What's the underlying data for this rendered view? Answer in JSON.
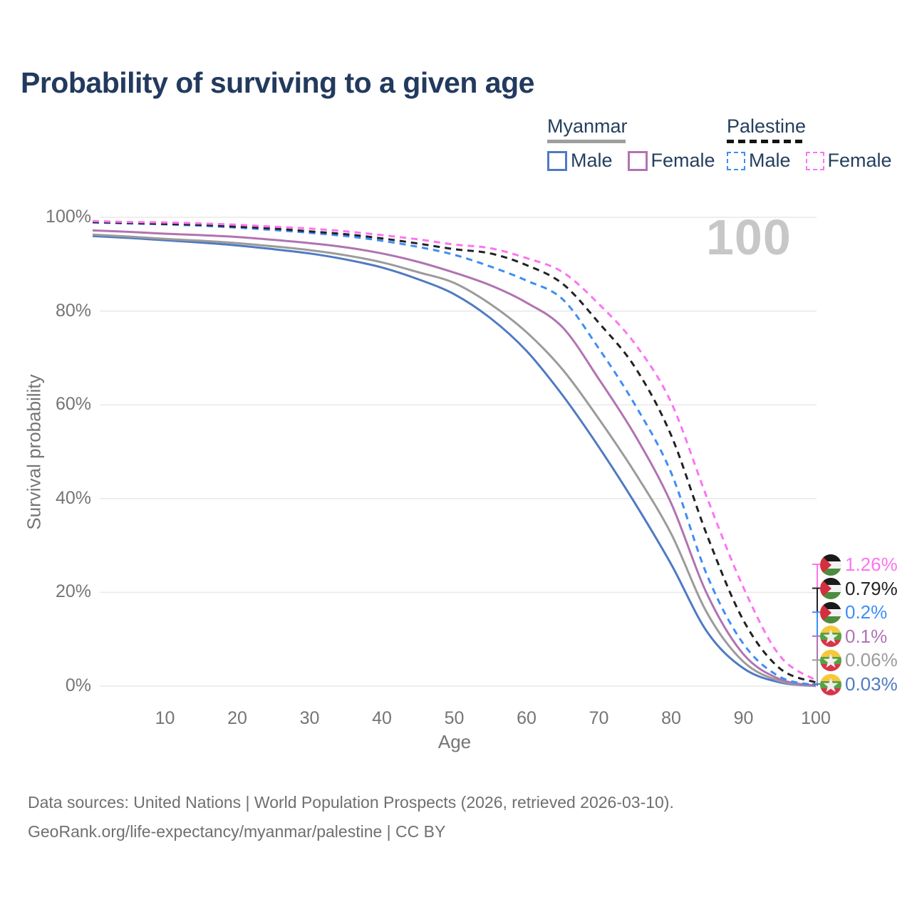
{
  "title": "Probability of surviving to a given age",
  "watermark": "100",
  "legend": {
    "groups": [
      {
        "label": "Myanmar",
        "line_style": "solid",
        "underline_color": "#9e9e9e",
        "items": [
          {
            "label": "Male",
            "color": "#4f7ac2",
            "dashed": false
          },
          {
            "label": "Female",
            "color": "#b173b1",
            "dashed": false
          }
        ]
      },
      {
        "label": "Palestine",
        "line_style": "dashed",
        "underline_color": "#141414",
        "items": [
          {
            "label": "Male",
            "color": "#3f8df5",
            "dashed": true
          },
          {
            "label": "Female",
            "color": "#fc74f0",
            "dashed": true
          }
        ]
      }
    ]
  },
  "axes": {
    "y": {
      "label": "Survival probability",
      "tick_values": [
        0,
        20,
        40,
        60,
        80,
        100
      ],
      "tick_labels": [
        "0%",
        "20%",
        "40%",
        "60%",
        "80%",
        "100%"
      ]
    },
    "x": {
      "label": "Age",
      "tick_values": [
        10,
        20,
        30,
        40,
        50,
        60,
        70,
        80,
        90,
        100
      ]
    }
  },
  "chart_data": {
    "type": "line",
    "title": "Probability of surviving to a given age",
    "xlabel": "Age",
    "ylabel": "Survival probability",
    "xlim": [
      0,
      100
    ],
    "ylim": [
      0,
      100
    ],
    "grid": "horizontal",
    "x_ages": [
      0,
      5,
      10,
      15,
      20,
      25,
      30,
      35,
      40,
      45,
      50,
      55,
      60,
      65,
      70,
      75,
      80,
      85,
      90,
      95,
      100
    ],
    "series": [
      {
        "name": "Myanmar Male",
        "country": "myanmar",
        "flag": "myanmar",
        "line": "solid",
        "color": "#4f7ac2",
        "values": [
          96.0,
          95.6,
          95.1,
          94.6,
          94.0,
          93.2,
          92.3,
          91.0,
          89.3,
          86.8,
          83.6,
          78.5,
          71.5,
          62.0,
          51.0,
          39.0,
          26.0,
          11.5,
          3.8,
          0.8,
          0.03
        ],
        "end_label": "0.03%"
      },
      {
        "name": "Myanmar (both sexes)",
        "country": "myanmar",
        "flag": "myanmar",
        "line": "solid",
        "color": "#9b9b9b",
        "values": [
          96.3,
          95.9,
          95.4,
          95.0,
          94.5,
          93.8,
          93.0,
          91.9,
          90.4,
          88.3,
          86.0,
          81.5,
          75.5,
          67.5,
          57.0,
          45.5,
          32.5,
          15.5,
          5.2,
          1.1,
          0.06
        ],
        "end_label": "0.06%"
      },
      {
        "name": "Myanmar Female",
        "country": "myanmar",
        "flag": "myanmar",
        "line": "solid",
        "color": "#b173b1",
        "values": [
          97.2,
          96.9,
          96.5,
          96.2,
          95.8,
          95.2,
          94.5,
          93.6,
          92.3,
          90.5,
          88.2,
          85.5,
          81.8,
          76.5,
          65.5,
          53.5,
          39.0,
          19.5,
          6.8,
          1.5,
          0.1
        ],
        "end_label": "0.1%"
      },
      {
        "name": "Palestine Male",
        "country": "palestine",
        "flag": "palestine",
        "line": "dashed",
        "color": "#3f8df5",
        "values": [
          98.9,
          98.7,
          98.5,
          98.2,
          97.8,
          97.3,
          96.7,
          96.0,
          95.0,
          93.7,
          92.0,
          89.5,
          86.5,
          82.5,
          72.0,
          60.0,
          45.5,
          23.5,
          9.0,
          2.0,
          0.2
        ],
        "end_label": "0.2%"
      },
      {
        "name": "Palestine (both sexes)",
        "country": "palestine",
        "flag": "palestine",
        "line": "dashed",
        "color": "#222222",
        "values": [
          99.0,
          98.8,
          98.6,
          98.4,
          98.0,
          97.6,
          97.0,
          96.4,
          95.5,
          94.4,
          93.2,
          92.3,
          89.8,
          85.8,
          77.5,
          68.0,
          53.5,
          32.0,
          14.0,
          3.8,
          0.79
        ],
        "end_label": "0.79%"
      },
      {
        "name": "Palestine Female",
        "country": "palestine",
        "flag": "palestine",
        "line": "dashed",
        "color": "#fc74f0",
        "values": [
          99.2,
          99.0,
          98.9,
          98.7,
          98.4,
          98.0,
          97.6,
          97.0,
          96.2,
          95.3,
          94.2,
          93.4,
          91.3,
          88.3,
          81.5,
          73.0,
          60.5,
          40.0,
          21.0,
          6.5,
          1.26
        ],
        "end_label": "1.26%"
      }
    ]
  },
  "flags": {
    "palestine": {
      "black": "#1a1a1a",
      "white": "#f2f2f2",
      "green": "#4d8c3f",
      "red": "#d32f3f"
    },
    "myanmar": {
      "yellow": "#f5c83d",
      "green": "#57a044",
      "red": "#d63649",
      "star": "#efefef"
    }
  },
  "footer": {
    "line1": "Data sources: United Nations | World Population Prospects (2026, retrieved 2026-03-10).",
    "line2": "GeoRank.org/life-expectancy/myanmar/palestine | CC BY"
  }
}
